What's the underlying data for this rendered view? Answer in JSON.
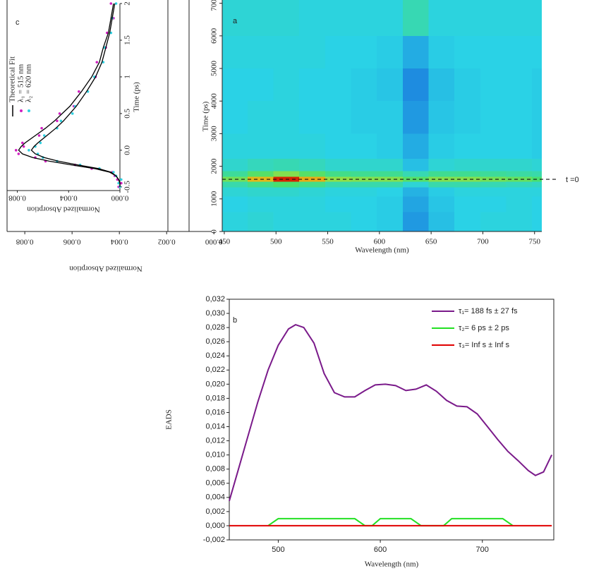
{
  "chart_data": [
    {
      "type": "heatmap",
      "label": "a",
      "xlabel": "Wavelength (nm)",
      "ylabel": "Time (ps)",
      "x": [
        460,
        485,
        510,
        535,
        560,
        585,
        610,
        635,
        660,
        685,
        710,
        735,
        760
      ],
      "y": [
        300,
        900,
        1250,
        1450,
        1600,
        1750,
        1950,
        2500,
        3500,
        4500,
        5500,
        6500
      ],
      "z": [
        [
          0.37,
          0.38,
          0.37,
          0.37,
          0.37,
          0.36,
          0.35,
          0.27,
          0.33,
          0.36,
          0.37,
          0.37,
          0.36
        ],
        [
          0.36,
          0.37,
          0.37,
          0.37,
          0.36,
          0.36,
          0.35,
          0.29,
          0.34,
          0.36,
          0.36,
          0.37,
          0.36
        ],
        [
          0.38,
          0.39,
          0.39,
          0.38,
          0.37,
          0.37,
          0.36,
          0.31,
          0.35,
          0.37,
          0.37,
          0.37,
          0.37
        ],
        [
          0.43,
          0.47,
          0.5,
          0.47,
          0.43,
          0.43,
          0.43,
          0.38,
          0.43,
          0.43,
          0.42,
          0.41,
          0.4
        ],
        [
          0.56,
          0.76,
          0.93,
          0.78,
          0.6,
          0.58,
          0.58,
          0.52,
          0.58,
          0.58,
          0.56,
          0.54,
          0.5
        ],
        [
          0.45,
          0.52,
          0.58,
          0.52,
          0.47,
          0.46,
          0.46,
          0.42,
          0.46,
          0.46,
          0.45,
          0.44,
          0.43
        ],
        [
          0.39,
          0.41,
          0.42,
          0.41,
          0.39,
          0.39,
          0.39,
          0.33,
          0.38,
          0.39,
          0.39,
          0.39,
          0.38
        ],
        [
          0.37,
          0.37,
          0.37,
          0.37,
          0.36,
          0.36,
          0.35,
          0.3,
          0.35,
          0.36,
          0.36,
          0.36,
          0.35
        ],
        [
          0.36,
          0.37,
          0.37,
          0.36,
          0.36,
          0.35,
          0.35,
          0.27,
          0.34,
          0.35,
          0.36,
          0.36,
          0.35
        ],
        [
          0.36,
          0.36,
          0.37,
          0.36,
          0.36,
          0.35,
          0.34,
          0.25,
          0.33,
          0.35,
          0.36,
          0.36,
          0.35
        ],
        [
          0.37,
          0.37,
          0.37,
          0.37,
          0.36,
          0.36,
          0.35,
          0.3,
          0.35,
          0.36,
          0.36,
          0.36,
          0.36
        ],
        [
          0.38,
          0.38,
          0.38,
          0.37,
          0.37,
          0.37,
          0.37,
          0.42,
          0.37,
          0.37,
          0.37,
          0.37,
          0.37
        ]
      ],
      "colormap": [
        [
          0,
          "#1030b0"
        ],
        [
          0.25,
          "#1e8ce0"
        ],
        [
          0.36,
          "#2ad2e6"
        ],
        [
          0.5,
          "#48e070"
        ],
        [
          0.7,
          "#d8e020"
        ],
        [
          0.82,
          "#f09010"
        ],
        [
          0.95,
          "#d01000"
        ]
      ],
      "xlim": [
        448,
        757
      ],
      "xticks": [
        450,
        500,
        550,
        600,
        650,
        700,
        750
      ],
      "ylim": [
        0,
        7100
      ],
      "yticks": [
        0,
        1000,
        2000,
        3000,
        4000,
        5000,
        6000,
        7000
      ],
      "annotation": {
        "text": "t =0",
        "y": 1600
      }
    },
    {
      "type": "rotated-line",
      "label": "c",
      "xlabel": "Time (ps)",
      "ylabel": "Normalized Absorption",
      "x": [
        -0.5,
        -0.45,
        -0.4,
        -0.35,
        -0.3,
        -0.25,
        -0.2,
        -0.15,
        -0.1,
        -0.05,
        0,
        0.05,
        0.1,
        0.2,
        0.3,
        0.4,
        0.5,
        0.6,
        0.8,
        1.0,
        1.2,
        1.4,
        1.6,
        1.8,
        2.0
      ],
      "xlim": [
        -0.55,
        2.0
      ],
      "xticks": [
        -0.5,
        {
          "value": 0,
          "label": "0.0"
        },
        0.5,
        1,
        1.5,
        2
      ],
      "ylim": [
        0,
        0.0088
      ],
      "yticks": [
        0.008,
        0.004,
        {
          "value": 0,
          "label": "0.000"
        }
      ],
      "fit": {
        "name": "Theoretical Fit",
        "color": "#000000",
        "curves": [
          [
            0,
            0,
            0.0001,
            0.0003,
            0.0008,
            0.002,
            0.0038,
            0.0055,
            0.0068,
            0.0076,
            0.0079,
            0.0077,
            0.0074,
            0.0066,
            0.0058,
            0.0051,
            0.0045,
            0.0039,
            0.003,
            0.0022,
            0.0016,
            0.0013,
            0.0009,
            0.0007,
            0.0005
          ],
          [
            0,
            0,
            0.0001,
            0.0003,
            0.0007,
            0.0017,
            0.0033,
            0.0048,
            0.0059,
            0.0066,
            0.0069,
            0.0067,
            0.0064,
            0.0057,
            0.005,
            0.0044,
            0.0039,
            0.0034,
            0.0026,
            0.0019,
            0.0014,
            0.0011,
            0.0008,
            0.0006,
            0.0004
          ]
        ]
      },
      "series": [
        {
          "name": "λ₁ = 515 nm",
          "color": "#d020c0",
          "values": [
            0.0001,
            -0.0001,
            0.0002,
            0.0004,
            0.0006,
            0.0022,
            0.0035,
            0.0058,
            0.0066,
            0.0079,
            0.0081,
            0.0075,
            0.0076,
            0.0063,
            0.0061,
            0.0049,
            0.0047,
            0.0036,
            0.0032,
            0.0019,
            0.0018,
            0.0011,
            0.001,
            0.0005,
            0.0007
          ]
        },
        {
          "name": "λ₂ = 620 nm",
          "color": "#30d0e0",
          "values": [
            0,
            0.0001,
            -0.0001,
            0.0003,
            0.0005,
            0.0016,
            0.0031,
            0.0049,
            0.006,
            0.0064,
            0.0071,
            0.0066,
            0.0062,
            0.0059,
            0.0049,
            0.0046,
            0.0037,
            0.0035,
            0.0025,
            0.002,
            0.0013,
            0.0012,
            0.0007,
            0.0006,
            0.0003
          ]
        }
      ],
      "outer_axis": {
        "label": "Normalized Absorption",
        "lim": [
          0.00875,
          -0.0005
        ],
        "ticks": [
          0.008,
          0.006,
          0.004,
          0.002,
          {
            "value": 0,
            "label": "0.000"
          }
        ]
      }
    },
    {
      "type": "line",
      "label": "b",
      "xlabel": "Wavelength (nm)",
      "ylabel": "EADS",
      "xlim": [
        452,
        770
      ],
      "xticks": [
        500,
        600,
        700
      ],
      "ylim": [
        -0.002,
        0.032
      ],
      "yticks": [
        {
          "value": -0.002,
          "label": "-0,002"
        },
        {
          "value": 0,
          "label": "0,000"
        },
        {
          "value": 0.002,
          "label": "0,002"
        },
        {
          "value": 0.004,
          "label": "0,004"
        },
        {
          "value": 0.006,
          "label": "0,006"
        },
        {
          "value": 0.008,
          "label": "0,008"
        },
        {
          "value": 0.01,
          "label": "0,010"
        },
        {
          "value": 0.012,
          "label": "0,012"
        },
        {
          "value": 0.014,
          "label": "0,014"
        },
        {
          "value": 0.016,
          "label": "0,016"
        },
        {
          "value": 0.018,
          "label": "0,018"
        },
        {
          "value": 0.02,
          "label": "0,020"
        },
        {
          "value": 0.022,
          "label": "0,022"
        },
        {
          "value": 0.024,
          "label": "0,024"
        },
        {
          "value": 0.026,
          "label": "0,026"
        },
        {
          "value": 0.028,
          "label": "0,028"
        },
        {
          "value": 0.03,
          "label": "0,030"
        },
        {
          "value": 0.032,
          "label": "0,032"
        }
      ],
      "legend": "upper right",
      "series": [
        {
          "name": "τ₁= 188 fs ± 27 fs",
          "color": "#7a1a8a",
          "x": [
            452,
            460,
            470,
            480,
            490,
            500,
            510,
            517,
            525,
            535,
            545,
            555,
            565,
            575,
            585,
            595,
            605,
            615,
            625,
            635,
            645,
            655,
            665,
            675,
            685,
            695,
            705,
            715,
            725,
            735,
            745,
            752,
            760,
            768
          ],
          "values": [
            0.0035,
            0.0075,
            0.0125,
            0.0175,
            0.022,
            0.0255,
            0.0278,
            0.0284,
            0.028,
            0.0258,
            0.0215,
            0.0188,
            0.0182,
            0.0182,
            0.0191,
            0.0199,
            0.02,
            0.0198,
            0.0191,
            0.0193,
            0.0199,
            0.019,
            0.0177,
            0.0169,
            0.0168,
            0.0158,
            0.014,
            0.0122,
            0.0105,
            0.0092,
            0.0078,
            0.0071,
            0.0076,
            0.01
          ]
        },
        {
          "name": "τ₂=  6 ps ± 2 ps",
          "color": "#22e022",
          "x": [
            490,
            500,
            575,
            585,
            592,
            600,
            630,
            640,
            662,
            670,
            720,
            730
          ],
          "values": [
            0,
            0.001,
            0.001,
            0,
            0,
            0.001,
            0.001,
            0,
            0,
            0.001,
            0.001,
            0
          ]
        },
        {
          "name": "τ₃= Inf s ± Inf s",
          "color": "#e00000",
          "x": [
            452,
            768
          ],
          "values": [
            0,
            0
          ]
        }
      ]
    }
  ]
}
